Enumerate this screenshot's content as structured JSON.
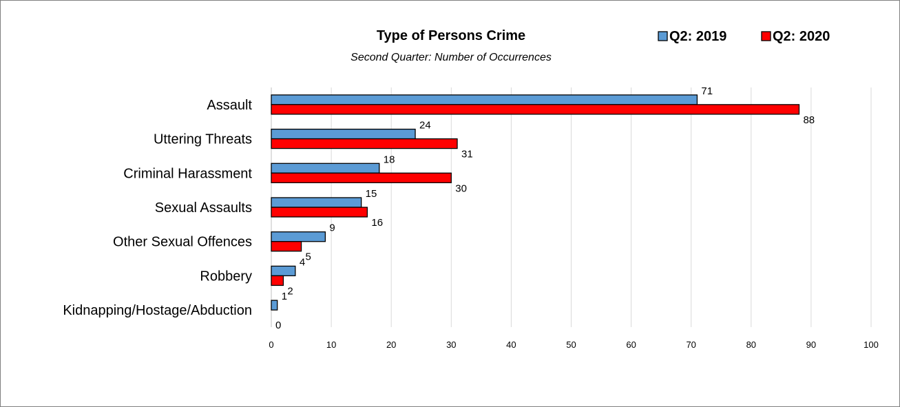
{
  "chart_data": {
    "type": "bar",
    "orientation": "horizontal",
    "title": "Type of Persons Crime",
    "subtitle": "Second Quarter: Number of Occurrences",
    "categories": [
      "Assault",
      "Uttering Threats",
      "Criminal Harassment",
      "Sexual Assaults",
      "Other Sexual Offences",
      "Robbery",
      "Kidnapping/Hostage/Abduction"
    ],
    "series": [
      {
        "name": "Q2: 2019",
        "color": "#5b9bd5",
        "values": [
          71,
          24,
          18,
          15,
          9,
          4,
          1
        ]
      },
      {
        "name": "Q2: 2020",
        "color": "#ff0000",
        "values": [
          88,
          31,
          30,
          16,
          5,
          2,
          0
        ]
      }
    ],
    "xlim": [
      0,
      100
    ],
    "xticks": [
      "0",
      "10",
      "20",
      "30",
      "40",
      "50",
      "60",
      "70",
      "80",
      "90",
      "100"
    ],
    "grid": true,
    "legend_position": "top-right",
    "data_labels": true
  }
}
